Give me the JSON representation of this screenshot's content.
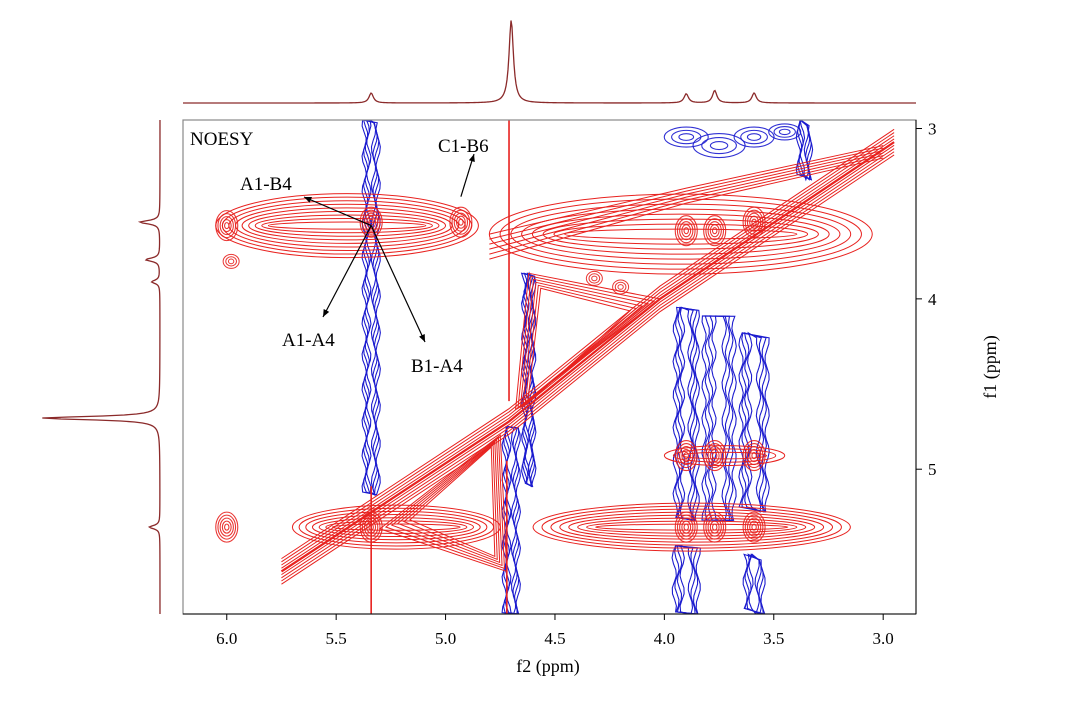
{
  "chart_data": {
    "type": "heatmap",
    "subtype": "2D NMR NOESY contour plot with 1D projections",
    "title": "NOESY",
    "xlabel": "f2 (ppm)",
    "ylabel": "f1 (ppm)",
    "xlim": [
      6.2,
      2.85
    ],
    "ylim": [
      2.95,
      5.85
    ],
    "x_ticks": [
      6.0,
      5.5,
      5.0,
      4.5,
      4.0,
      3.5,
      3.0
    ],
    "x_tick_labels": [
      "6.0",
      "5.5",
      "5.0",
      "4.5",
      "4.0",
      "3.5",
      "3.0"
    ],
    "y_ticks": [
      3,
      4,
      5
    ],
    "y_tick_labels": [
      "3",
      "4",
      "5"
    ],
    "colors": {
      "positive": "#e8221f",
      "negative": "#1c1ccf",
      "projection": "#8b2a2a",
      "frame": "#888888"
    },
    "top_projection_peaks": [
      {
        "ppm": 5.34,
        "height": 0.12
      },
      {
        "ppm": 4.7,
        "height": 1.0
      },
      {
        "ppm": 3.9,
        "height": 0.11
      },
      {
        "ppm": 3.77,
        "height": 0.15
      },
      {
        "ppm": 3.59,
        "height": 0.12
      }
    ],
    "side_projection_peaks": [
      {
        "ppm": 3.55,
        "height": 0.17
      },
      {
        "ppm": 3.77,
        "height": 0.12
      },
      {
        "ppm": 3.9,
        "height": 0.07
      },
      {
        "ppm": 4.7,
        "height": 1.0
      },
      {
        "ppm": 5.34,
        "height": 0.09
      }
    ],
    "positive_cross_peaks": [
      {
        "f2": 5.34,
        "f1": 3.55
      },
      {
        "f2": 5.34,
        "f1": 5.34
      },
      {
        "f2": 4.93,
        "f1": 3.55
      },
      {
        "f2": 3.9,
        "f1": 3.6
      },
      {
        "f2": 3.77,
        "f1": 3.6
      },
      {
        "f2": 3.59,
        "f1": 3.55
      },
      {
        "f2": 3.9,
        "f1": 5.34
      },
      {
        "f2": 3.77,
        "f1": 5.34
      },
      {
        "f2": 3.59,
        "f1": 5.34
      },
      {
        "f2": 3.9,
        "f1": 4.92
      },
      {
        "f2": 3.77,
        "f1": 4.92
      },
      {
        "f2": 3.59,
        "f1": 4.92
      },
      {
        "f2": 6.0,
        "f1": 3.57
      },
      {
        "f2": 6.0,
        "f1": 5.34
      }
    ],
    "negative_stripes_f2": [
      5.34,
      4.7,
      4.62,
      3.9,
      3.75,
      3.59,
      3.36
    ],
    "annotations": [
      {
        "text": "A1-B4",
        "f2": 5.34,
        "f1": 3.57
      },
      {
        "text": "A1-A4",
        "f2": 5.34,
        "f1": 3.57
      },
      {
        "text": "B1-A4",
        "f2": 5.34,
        "f1": 3.57
      },
      {
        "text": "C1-B6",
        "f2": 4.93,
        "f1": 3.5
      }
    ]
  }
}
